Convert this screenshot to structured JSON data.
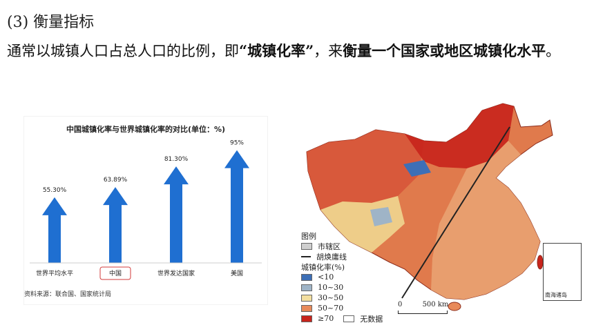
{
  "heading": "(3) 衡量指标",
  "paragraph": {
    "part1": "通常以城镇人口占总人口的比例，即",
    "bold1": "“城镇化率”",
    "part2": "，来",
    "bold2": "衡量一个国家或地区城镇化水平",
    "part3": "。"
  },
  "chart_data": {
    "type": "bar",
    "title": "中国城镇化率与世界城镇化率的对比(单位：%)",
    "categories": [
      "世界平均水平",
      "中国",
      "世界发达国家",
      "美国"
    ],
    "values": [
      55.3,
      63.89,
      81.3,
      95
    ],
    "value_labels": [
      "55.30%",
      "63.89%",
      "81.30%",
      "95%"
    ],
    "highlighted_category": "中国",
    "bar_color": "#1f6fd1",
    "highlight_box_color": "#d23a3a",
    "source": "资料来源：联合国、国家统计局"
  },
  "map": {
    "legend_title": "图例",
    "legend_city": "市辖区",
    "legend_line": "胡焕庸线",
    "legend_rate_title": "城镇化率(%)",
    "legend_items": [
      {
        "label": "<10",
        "color": "#3d6fb6"
      },
      {
        "label": "10~30",
        "color": "#9fb4c7"
      },
      {
        "label": "30~50",
        "color": "#f3dfa0"
      },
      {
        "label": "50~70",
        "color": "#e88a5a"
      },
      {
        "label": "≥70",
        "color": "#c8241c"
      }
    ],
    "no_data_label": "无数据",
    "scale_zero": "0",
    "scale_label": "500 km",
    "inset_label": "南海诸岛"
  }
}
